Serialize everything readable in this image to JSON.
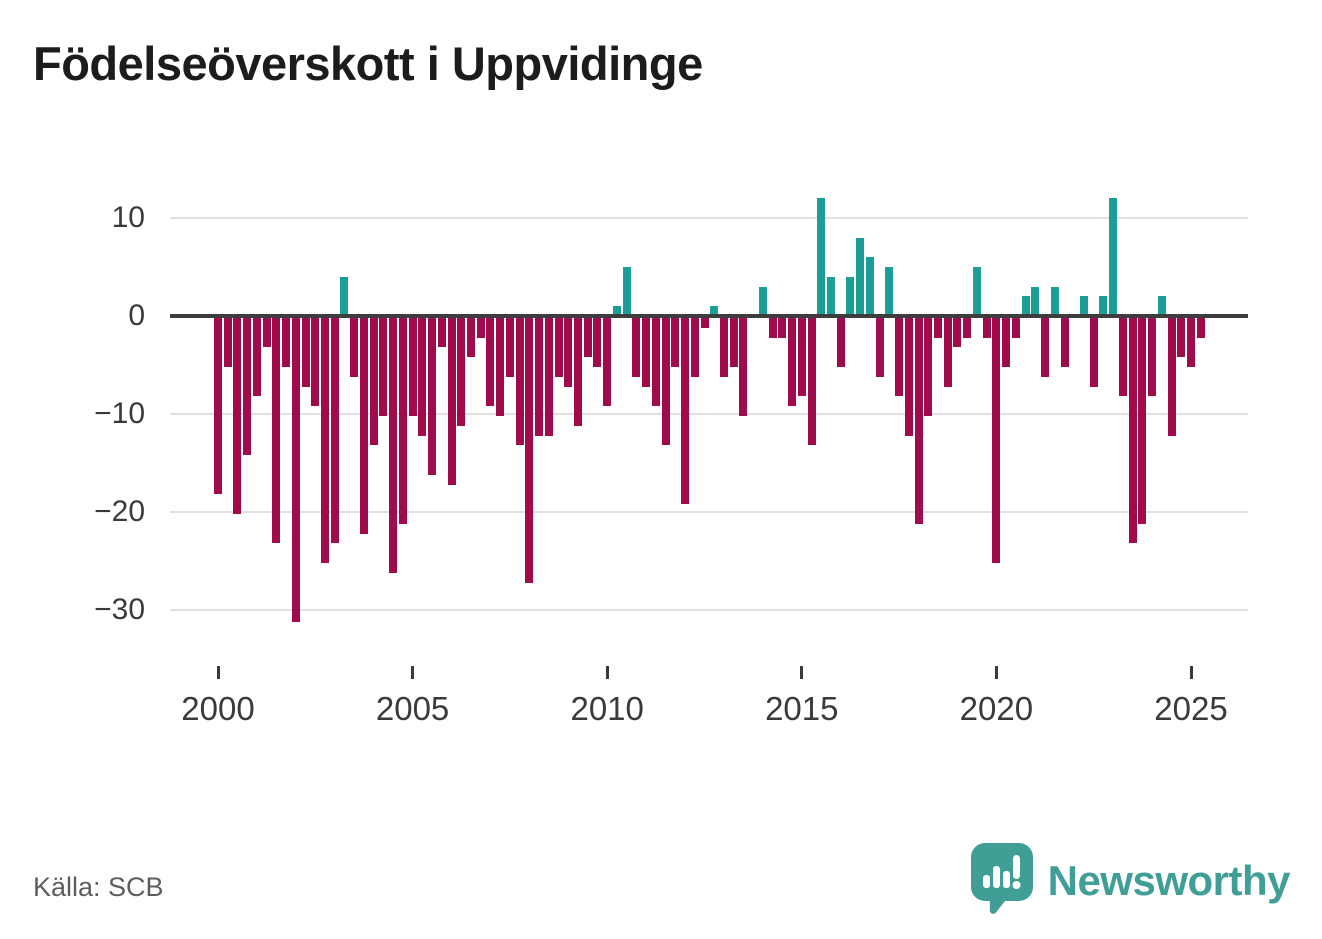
{
  "title": "Födelseöverskott i Uppvidinge",
  "source": "Källa: SCB",
  "brand": {
    "name": "Newsworthy",
    "logo_icon": "speech-bubble-bar-chart"
  },
  "chart_data": {
    "type": "bar",
    "title": "Födelseöverskott i Uppvidinge",
    "period": "quarterly",
    "start": "2000-Q1",
    "end": "2025-Q2",
    "values": [
      -18,
      -5,
      -20,
      -14,
      -8,
      -3,
      -23,
      -5,
      -31,
      -7,
      -9,
      -25,
      -23,
      4,
      -6,
      -22,
      -13,
      -10,
      -26,
      -21,
      -10,
      -12,
      -16,
      -3,
      -17,
      -11,
      -4,
      -2,
      -9,
      -10,
      -6,
      -13,
      -27,
      -12,
      -12,
      -6,
      -7,
      -11,
      -4,
      -5,
      -9,
      1,
      5,
      -6,
      -7,
      -9,
      -13,
      -5,
      -19,
      -6,
      -1,
      1,
      -6,
      -5,
      -10,
      0,
      3,
      -2,
      -2,
      -9,
      -8,
      -13,
      12,
      4,
      -5,
      4,
      8,
      6,
      -6,
      5,
      -8,
      -12,
      -21,
      -10,
      -2,
      -7,
      -3,
      -2,
      5,
      -2,
      -25,
      -5,
      -2,
      2,
      3,
      -6,
      3,
      -5,
      0,
      2,
      -7,
      2,
      12,
      -8,
      -23,
      -21,
      -8,
      2,
      -12,
      -4,
      -5,
      -2
    ],
    "x_tick_labels": [
      "2000",
      "2005",
      "2010",
      "2015",
      "2020",
      "2025"
    ],
    "y_tick_labels": [
      "10",
      "0",
      "−10",
      "−20",
      "−30"
    ],
    "y_ticks": [
      10,
      0,
      -10,
      -20,
      -30
    ],
    "ylim": [
      -33,
      13
    ],
    "grid": "horizontal",
    "legend": "none",
    "colors": {
      "positive": "#1a9e97",
      "negative": "#a00b4b"
    }
  }
}
